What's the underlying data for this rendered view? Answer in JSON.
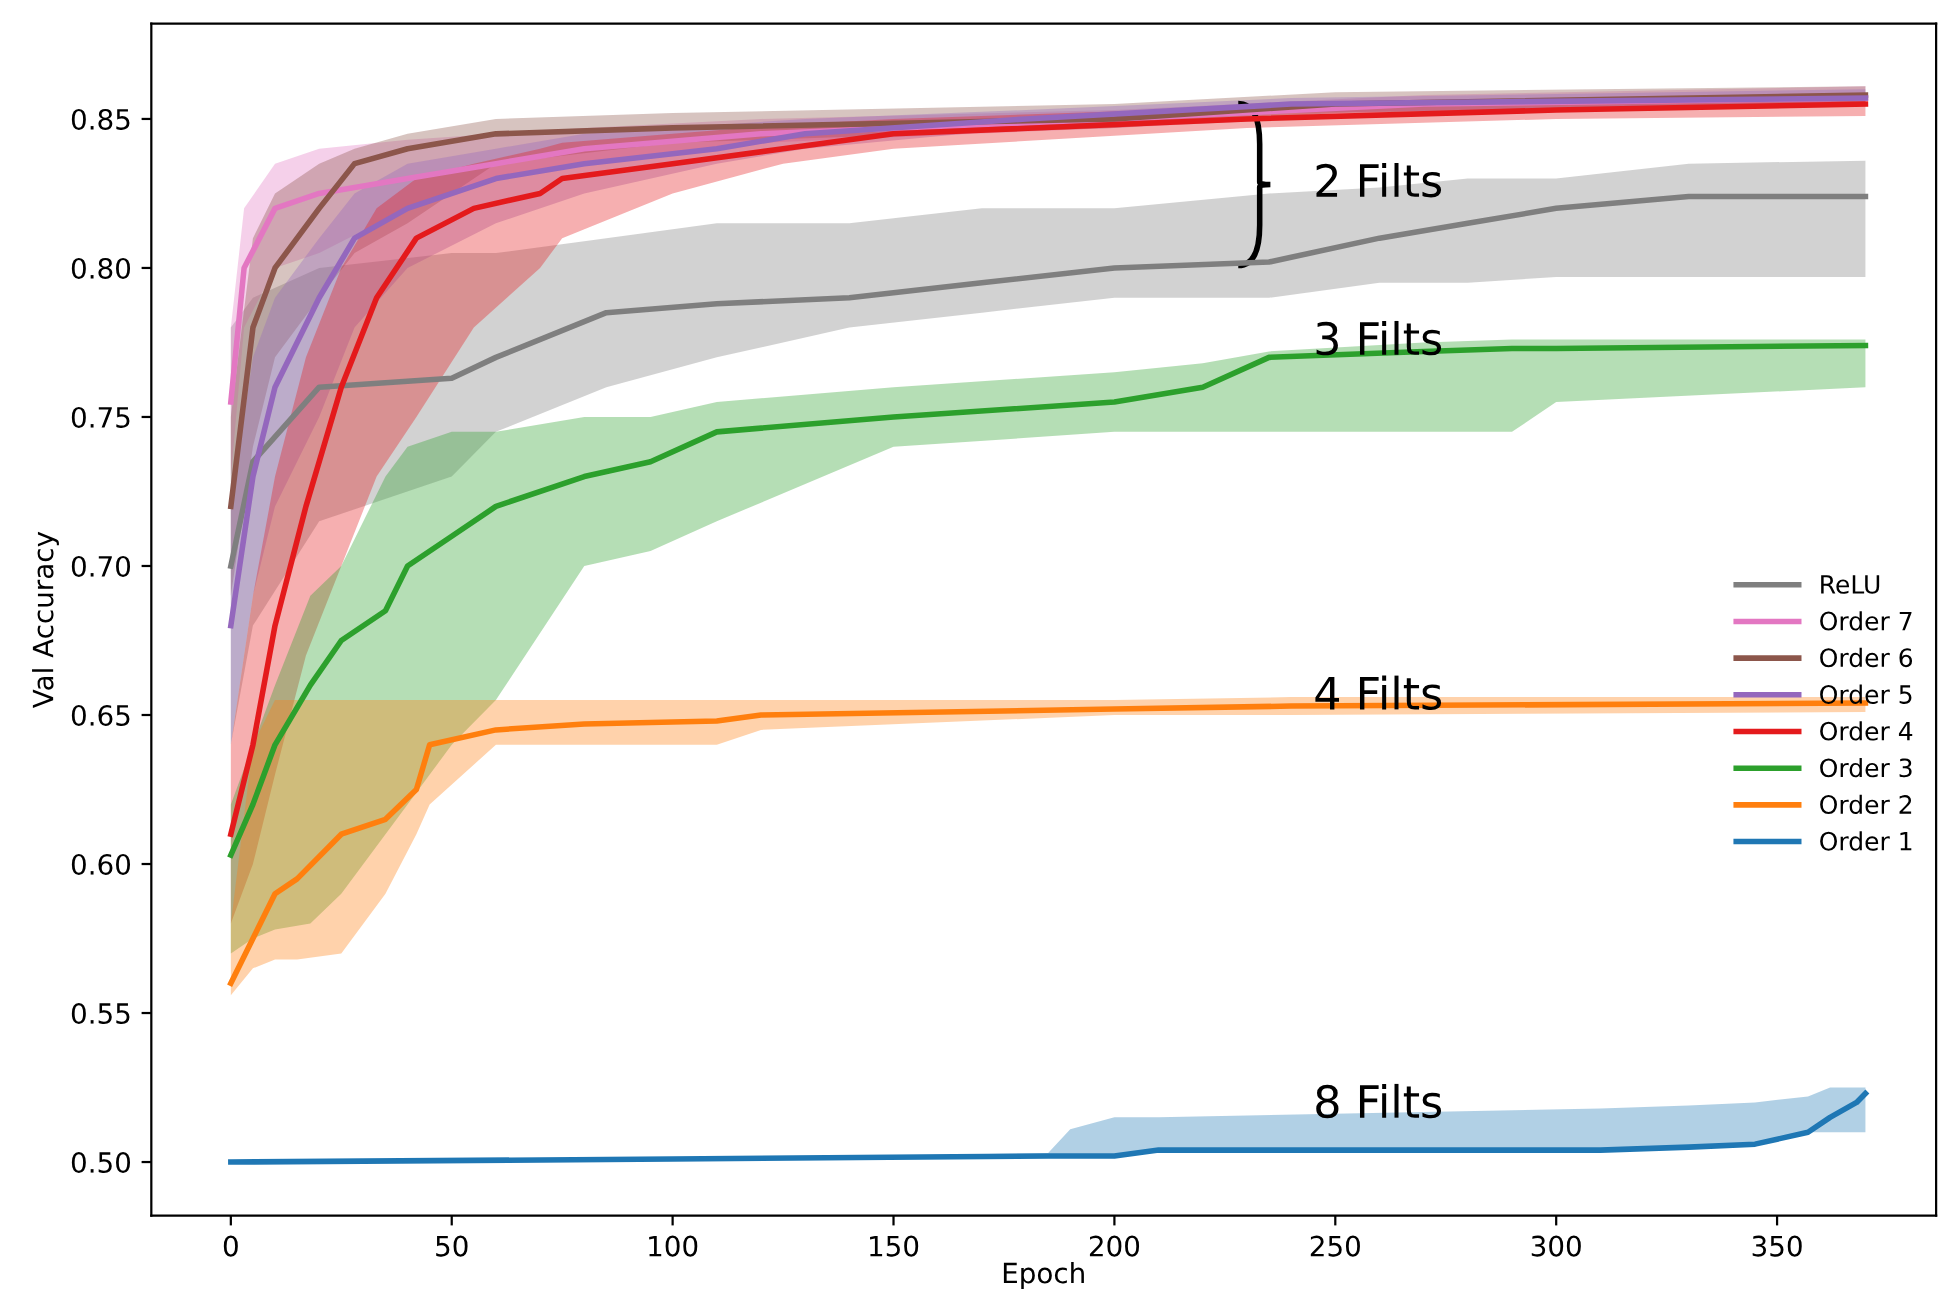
{
  "chart_data": {
    "type": "line",
    "xlabel": "Epoch",
    "ylabel": "Val Accuracy",
    "xlim": [
      -18,
      386
    ],
    "ylim": [
      0.482,
      0.882
    ],
    "xticks": [
      0,
      50,
      100,
      150,
      200,
      250,
      300,
      350
    ],
    "yticks": [
      {
        "value": 0.5,
        "label": "0.50"
      },
      {
        "value": 0.55,
        "label": "0.55"
      },
      {
        "value": 0.6,
        "label": "0.60"
      },
      {
        "value": 0.65,
        "label": "0.65"
      },
      {
        "value": 0.7,
        "label": "0.70"
      },
      {
        "value": 0.75,
        "label": "0.75"
      },
      {
        "value": 0.8,
        "label": "0.80"
      },
      {
        "value": 0.85,
        "label": "0.85"
      }
    ],
    "grid": false,
    "legend": "right",
    "marker": "none",
    "line_style": "solid",
    "series": [
      {
        "name": "ReLU",
        "color": "#7f7f7f",
        "x": [
          0,
          5,
          20,
          50,
          60,
          85,
          110,
          140,
          170,
          200,
          235,
          260,
          280,
          300,
          330,
          370
        ],
        "values": [
          0.7,
          0.735,
          0.76,
          0.763,
          0.77,
          0.785,
          0.788,
          0.79,
          0.795,
          0.8,
          0.802,
          0.81,
          0.815,
          0.82,
          0.824,
          0.824
        ],
        "lower": [
          0.64,
          0.68,
          0.715,
          0.73,
          0.745,
          0.76,
          0.77,
          0.78,
          0.785,
          0.79,
          0.79,
          0.795,
          0.795,
          0.797,
          0.797,
          0.797
        ],
        "upper": [
          0.78,
          0.79,
          0.8,
          0.805,
          0.805,
          0.81,
          0.815,
          0.815,
          0.82,
          0.82,
          0.825,
          0.827,
          0.83,
          0.83,
          0.835,
          0.836
        ]
      },
      {
        "name": "Order 7",
        "color": "#e377c2",
        "x": [
          0,
          3,
          10,
          20,
          40,
          60,
          80,
          120,
          200,
          270,
          370
        ],
        "values": [
          0.755,
          0.8,
          0.82,
          0.825,
          0.83,
          0.835,
          0.84,
          0.845,
          0.85,
          0.855,
          0.857
        ],
        "lower": [
          0.73,
          0.78,
          0.8,
          0.805,
          0.82,
          0.83,
          0.835,
          0.842,
          0.847,
          0.852,
          0.855
        ],
        "upper": [
          0.78,
          0.82,
          0.835,
          0.84,
          0.843,
          0.845,
          0.847,
          0.85,
          0.853,
          0.858,
          0.861
        ]
      },
      {
        "name": "Order 6",
        "color": "#8c564b",
        "x": [
          0,
          5,
          10,
          20,
          28,
          40,
          60,
          100,
          200,
          250,
          370
        ],
        "values": [
          0.72,
          0.78,
          0.8,
          0.82,
          0.835,
          0.84,
          0.845,
          0.847,
          0.85,
          0.855,
          0.858
        ],
        "lower": [
          0.69,
          0.74,
          0.77,
          0.79,
          0.805,
          0.815,
          0.835,
          0.842,
          0.847,
          0.852,
          0.855
        ],
        "upper": [
          0.75,
          0.81,
          0.825,
          0.835,
          0.84,
          0.845,
          0.85,
          0.852,
          0.855,
          0.859,
          0.861
        ]
      },
      {
        "name": "Order 5",
        "color": "#9467bd",
        "x": [
          0,
          5,
          10,
          20,
          28,
          40,
          60,
          80,
          110,
          130,
          180,
          240,
          370
        ],
        "values": [
          0.68,
          0.73,
          0.76,
          0.79,
          0.81,
          0.82,
          0.83,
          0.835,
          0.84,
          0.845,
          0.85,
          0.855,
          0.857
        ],
        "lower": [
          0.64,
          0.69,
          0.72,
          0.75,
          0.78,
          0.8,
          0.815,
          0.825,
          0.835,
          0.84,
          0.847,
          0.852,
          0.855
        ],
        "upper": [
          0.72,
          0.77,
          0.79,
          0.81,
          0.825,
          0.835,
          0.84,
          0.845,
          0.848,
          0.85,
          0.853,
          0.857,
          0.86
        ]
      },
      {
        "name": "Order 4",
        "color": "#e41a1c",
        "x": [
          0,
          5,
          10,
          17,
          25,
          33,
          42,
          55,
          70,
          75,
          100,
          125,
          150,
          230,
          300,
          370
        ],
        "values": [
          0.61,
          0.64,
          0.68,
          0.72,
          0.76,
          0.79,
          0.81,
          0.82,
          0.825,
          0.83,
          0.835,
          0.84,
          0.845,
          0.85,
          0.853,
          0.855
        ],
        "lower": [
          0.58,
          0.6,
          0.63,
          0.67,
          0.7,
          0.73,
          0.75,
          0.78,
          0.8,
          0.81,
          0.825,
          0.835,
          0.84,
          0.847,
          0.85,
          0.851
        ],
        "upper": [
          0.64,
          0.69,
          0.73,
          0.77,
          0.8,
          0.82,
          0.83,
          0.835,
          0.84,
          0.842,
          0.845,
          0.848,
          0.85,
          0.854,
          0.857,
          0.858
        ]
      },
      {
        "name": "Order 3",
        "color": "#2ca02c",
        "x": [
          0,
          5,
          10,
          18,
          25,
          35,
          40,
          50,
          60,
          80,
          95,
          110,
          150,
          200,
          220,
          235,
          270,
          290,
          300,
          370
        ],
        "values": [
          0.603,
          0.62,
          0.64,
          0.66,
          0.675,
          0.685,
          0.7,
          0.71,
          0.72,
          0.73,
          0.735,
          0.745,
          0.75,
          0.755,
          0.76,
          0.77,
          0.772,
          0.773,
          0.773,
          0.774
        ],
        "lower": [
          0.57,
          0.575,
          0.578,
          0.58,
          0.59,
          0.61,
          0.62,
          0.64,
          0.655,
          0.7,
          0.705,
          0.715,
          0.74,
          0.745,
          0.745,
          0.745,
          0.745,
          0.745,
          0.755,
          0.76
        ],
        "upper": [
          0.62,
          0.64,
          0.66,
          0.69,
          0.7,
          0.73,
          0.74,
          0.745,
          0.745,
          0.75,
          0.75,
          0.755,
          0.76,
          0.765,
          0.768,
          0.772,
          0.775,
          0.776,
          0.776,
          0.776
        ]
      },
      {
        "name": "Order 2",
        "color": "#ff7f0e",
        "x": [
          0,
          5,
          10,
          15,
          25,
          35,
          42,
          45,
          60,
          80,
          110,
          120,
          200,
          240,
          370
        ],
        "values": [
          0.56,
          0.575,
          0.59,
          0.595,
          0.61,
          0.615,
          0.625,
          0.64,
          0.645,
          0.647,
          0.648,
          0.65,
          0.652,
          0.653,
          0.654
        ],
        "lower": [
          0.556,
          0.565,
          0.568,
          0.568,
          0.57,
          0.59,
          0.61,
          0.62,
          0.64,
          0.64,
          0.64,
          0.645,
          0.65,
          0.65,
          0.651
        ],
        "upper": [
          0.58,
          0.64,
          0.655,
          0.655,
          0.655,
          0.655,
          0.655,
          0.655,
          0.655,
          0.655,
          0.655,
          0.655,
          0.655,
          0.656,
          0.656
        ]
      },
      {
        "name": "Order 1",
        "color": "#1f77b4",
        "x": [
          0,
          100,
          185,
          190,
          200,
          210,
          310,
          330,
          345,
          357,
          362,
          368,
          370
        ],
        "values": [
          0.5,
          0.501,
          0.502,
          0.502,
          0.502,
          0.504,
          0.504,
          0.505,
          0.506,
          0.51,
          0.515,
          0.52,
          0.523
        ],
        "lower": [
          0.5,
          0.501,
          0.502,
          0.502,
          0.502,
          0.504,
          0.504,
          0.505,
          0.506,
          0.51,
          0.51,
          0.51,
          0.51
        ],
        "upper": [
          0.5,
          0.501,
          0.503,
          0.511,
          0.515,
          0.515,
          0.518,
          0.519,
          0.52,
          0.522,
          0.525,
          0.525,
          0.525
        ]
      }
    ],
    "annotations": [
      "2 Filts",
      "3 Filts",
      "4 Filts",
      "8 Filts"
    ]
  }
}
